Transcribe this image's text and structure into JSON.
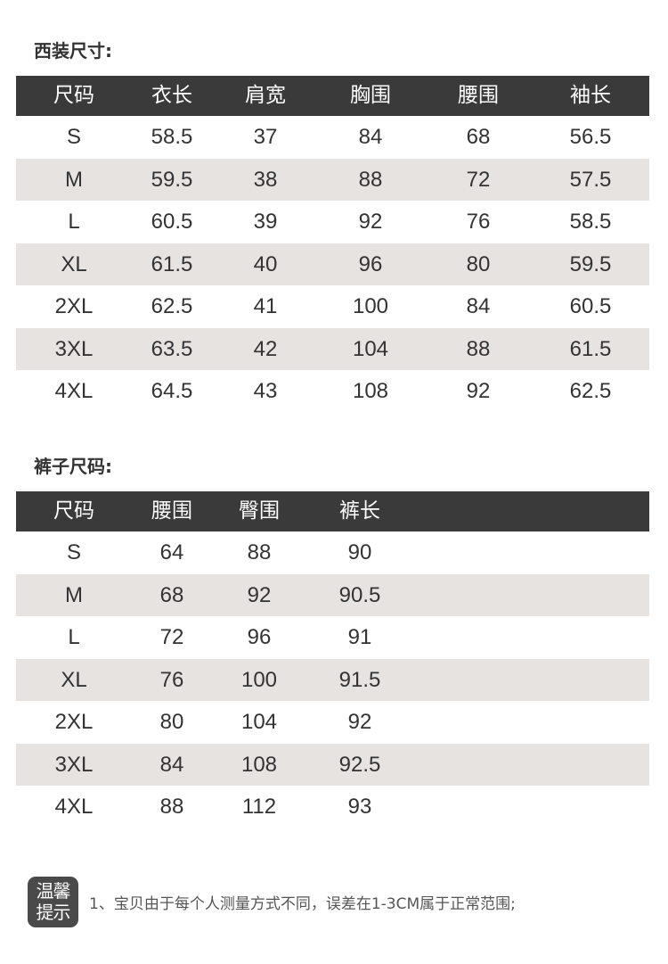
{
  "suit": {
    "title": "西装尺寸:",
    "headers": [
      "尺码",
      "衣长",
      "肩宽",
      "胸围",
      "腰围",
      "袖长"
    ],
    "rows": [
      [
        "S",
        "58.5",
        "37",
        "84",
        "68",
        "56.5"
      ],
      [
        "M",
        "59.5",
        "38",
        "88",
        "72",
        "57.5"
      ],
      [
        "L",
        "60.5",
        "39",
        "92",
        "76",
        "58.5"
      ],
      [
        "XL",
        "61.5",
        "40",
        "96",
        "80",
        "59.5"
      ],
      [
        "2XL",
        "62.5",
        "41",
        "100",
        "84",
        "60.5"
      ],
      [
        "3XL",
        "63.5",
        "42",
        "104",
        "88",
        "61.5"
      ],
      [
        "4XL",
        "64.5",
        "43",
        "108",
        "92",
        "62.5"
      ]
    ]
  },
  "pants": {
    "title": "裤子尺码:",
    "headers": [
      "尺码",
      "腰围",
      "臀围",
      "裤长"
    ],
    "rows": [
      [
        "S",
        "64",
        "88",
        "90"
      ],
      [
        "M",
        "68",
        "92",
        "90.5"
      ],
      [
        "L",
        "72",
        "96",
        "91"
      ],
      [
        "XL",
        "76",
        "100",
        "91.5"
      ],
      [
        "2XL",
        "80",
        "104",
        "92"
      ],
      [
        "3XL",
        "84",
        "108",
        "92.5"
      ],
      [
        "4XL",
        "88",
        "112",
        "93"
      ]
    ]
  },
  "note": {
    "badge_line1": "温馨",
    "badge_line2": "提示",
    "text": "1、宝贝由于每个人测量方式不同，误差在1-3CM属于正常范围;"
  },
  "colors": {
    "header_bg": "#3a3a3a",
    "stripe": "#e6e3e0"
  }
}
